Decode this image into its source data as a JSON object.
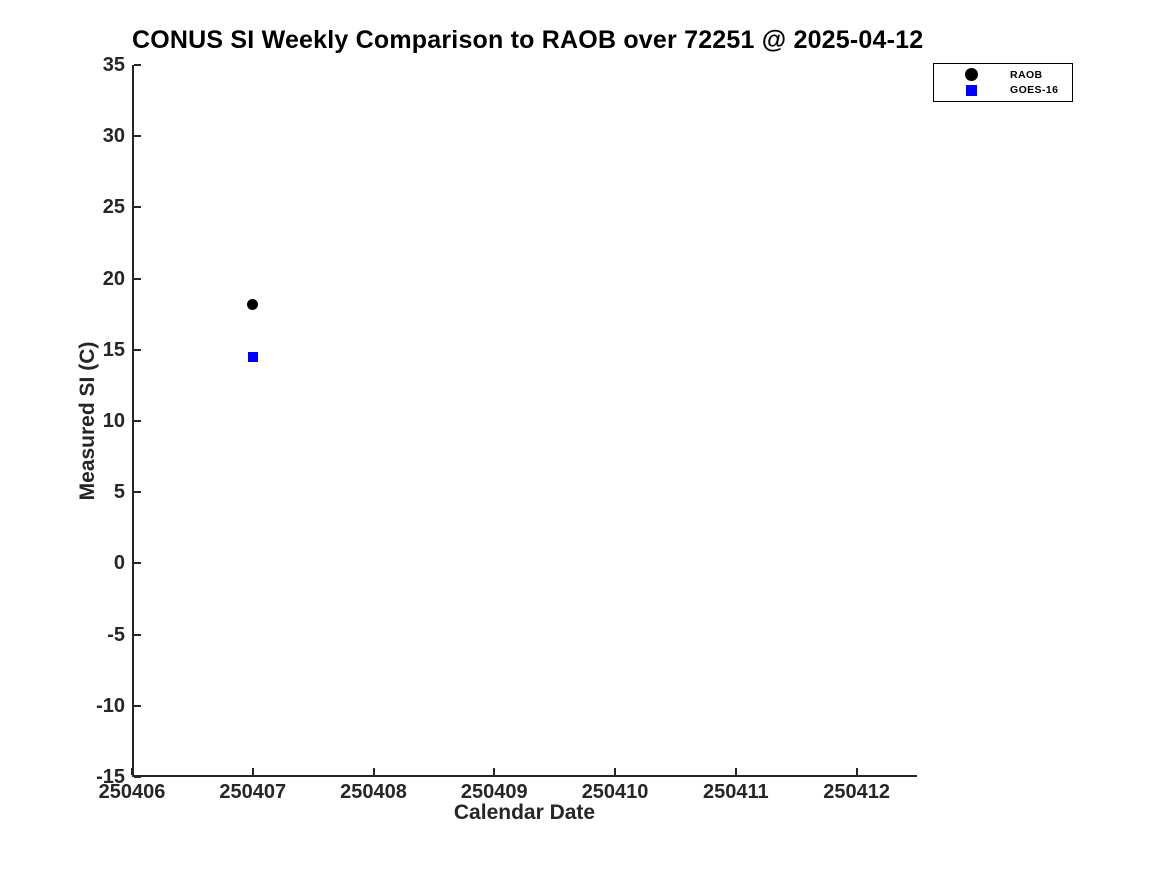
{
  "figure": {
    "background": "#ffffff"
  },
  "chart_data": {
    "type": "scatter",
    "title": "CONUS SI Weekly Comparison to RAOB over 72251 @ 2025-04-12",
    "xlabel": "Calendar Date",
    "ylabel": "Measured SI (C)",
    "xlim": [
      250406,
      250412.5
    ],
    "ylim": [
      -15,
      35
    ],
    "xticks": [
      250406,
      250407,
      250408,
      250409,
      250410,
      250411,
      250412
    ],
    "yticks": [
      -15,
      -10,
      -5,
      0,
      5,
      10,
      15,
      20,
      25,
      30,
      35
    ],
    "grid": false,
    "axis_color": "#262626",
    "title_color": "#000000",
    "legend_position": "top-right",
    "series": [
      {
        "name": "RAOB",
        "marker": "circle",
        "color": "#000000",
        "marker_size": 11,
        "points": [
          {
            "x": 250407,
            "y": 18.2
          }
        ]
      },
      {
        "name": "GOES-16",
        "marker": "square",
        "color": "#0000ff",
        "marker_size": 10,
        "points": [
          {
            "x": 250407,
            "y": 14.5
          }
        ]
      }
    ]
  }
}
